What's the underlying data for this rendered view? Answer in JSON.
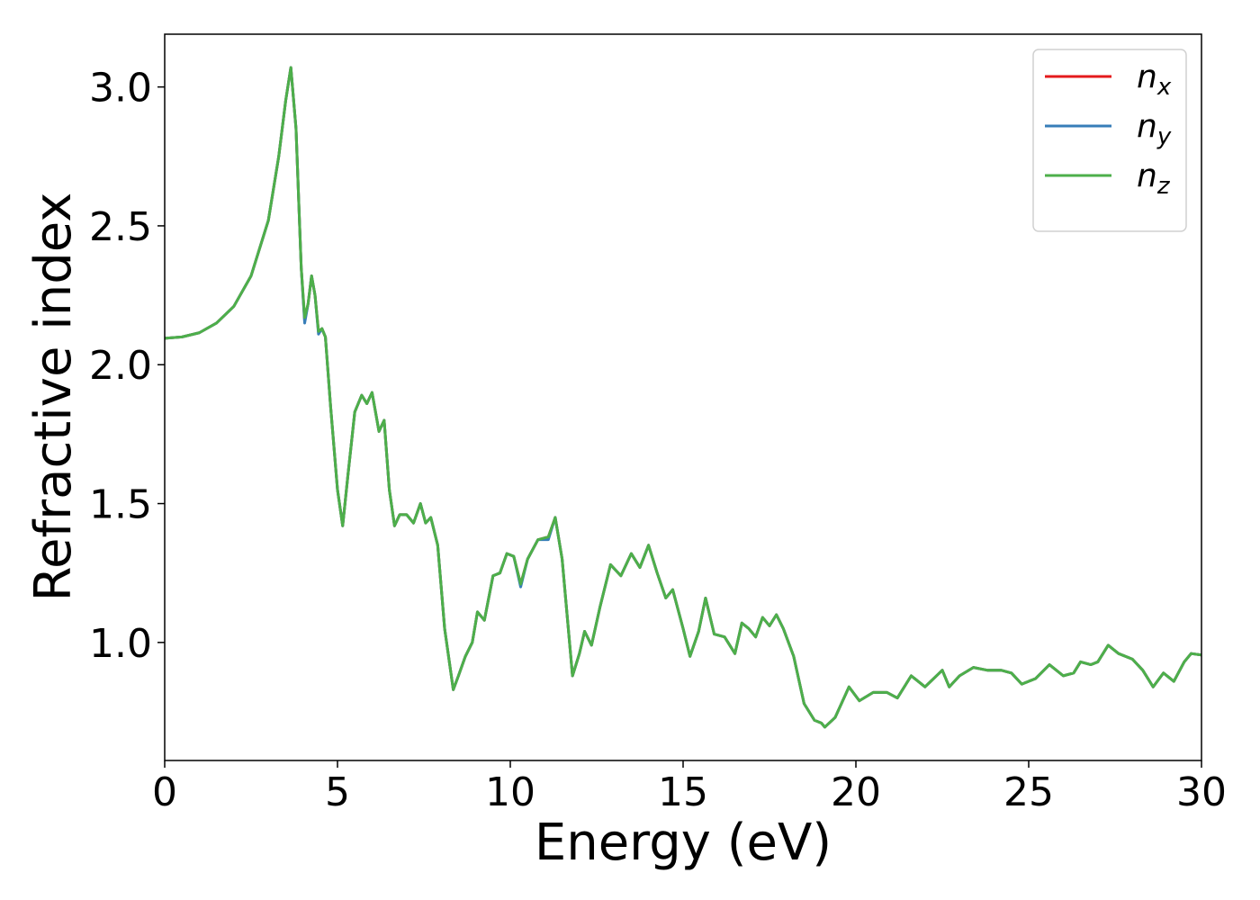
{
  "chart_data": {
    "type": "line",
    "xlabel": "Energy (eV)",
    "ylabel": "Refractive index",
    "x": [
      0,
      0.5,
      1,
      1.5,
      2,
      2.5,
      3,
      3.3,
      3.5,
      3.65,
      3.8,
      3.95,
      4.05,
      4.15,
      4.25,
      4.35,
      4.45,
      4.55,
      4.65,
      4.8,
      5.0,
      5.15,
      5.3,
      5.5,
      5.7,
      5.85,
      6.0,
      6.2,
      6.35,
      6.5,
      6.65,
      6.8,
      7.0,
      7.2,
      7.4,
      7.55,
      7.7,
      7.9,
      8.1,
      8.35,
      8.5,
      8.7,
      8.9,
      9.05,
      9.25,
      9.5,
      9.7,
      9.9,
      10.1,
      10.3,
      10.5,
      10.8,
      11.1,
      11.3,
      11.5,
      11.8,
      12.0,
      12.15,
      12.35,
      12.6,
      12.9,
      13.2,
      13.5,
      13.75,
      14.0,
      14.25,
      14.5,
      14.7,
      15.0,
      15.2,
      15.45,
      15.65,
      15.9,
      16.2,
      16.5,
      16.7,
      16.9,
      17.1,
      17.3,
      17.5,
      17.7,
      17.9,
      18.2,
      18.5,
      18.8,
      19.0,
      19.1,
      19.4,
      19.8,
      20.1,
      20.5,
      20.9,
      21.2,
      21.6,
      22.0,
      22.5,
      22.7,
      23.0,
      23.4,
      23.8,
      24.2,
      24.5,
      24.8,
      25.2,
      25.6,
      26.0,
      26.3,
      26.5,
      26.8,
      27.0,
      27.3,
      27.6,
      28.0,
      28.3,
      28.6,
      28.9,
      29.2,
      29.5,
      29.7,
      30.0
    ],
    "series": [
      {
        "name": "nx",
        "color": "#e41a1c",
        "values": [
          2.095,
          2.1,
          2.115,
          2.15,
          2.21,
          2.32,
          2.52,
          2.75,
          2.95,
          3.07,
          2.85,
          2.35,
          2.16,
          2.22,
          2.32,
          2.25,
          2.12,
          2.13,
          2.1,
          1.85,
          1.55,
          1.42,
          1.6,
          1.83,
          1.89,
          1.86,
          1.9,
          1.76,
          1.8,
          1.55,
          1.42,
          1.46,
          1.46,
          1.43,
          1.5,
          1.43,
          1.45,
          1.35,
          1.05,
          0.83,
          0.88,
          0.95,
          1.0,
          1.11,
          1.08,
          1.24,
          1.25,
          1.32,
          1.31,
          1.21,
          1.3,
          1.37,
          1.38,
          1.45,
          1.3,
          0.88,
          0.96,
          1.04,
          0.99,
          1.13,
          1.28,
          1.24,
          1.32,
          1.27,
          1.35,
          1.25,
          1.16,
          1.19,
          1.05,
          0.95,
          1.04,
          1.16,
          1.03,
          1.02,
          0.96,
          1.07,
          1.05,
          1.02,
          1.09,
          1.06,
          1.1,
          1.05,
          0.95,
          0.78,
          0.72,
          0.71,
          0.695,
          0.73,
          0.84,
          0.79,
          0.82,
          0.82,
          0.8,
          0.88,
          0.84,
          0.9,
          0.84,
          0.88,
          0.91,
          0.9,
          0.9,
          0.89,
          0.85,
          0.87,
          0.92,
          0.88,
          0.89,
          0.93,
          0.92,
          0.93,
          0.99,
          0.96,
          0.94,
          0.9,
          0.84,
          0.89,
          0.86,
          0.93,
          0.96,
          0.955
        ]
      },
      {
        "name": "ny",
        "color": "#377eb8",
        "values": [
          2.095,
          2.1,
          2.115,
          2.15,
          2.21,
          2.32,
          2.52,
          2.75,
          2.95,
          3.07,
          2.85,
          2.35,
          2.15,
          2.22,
          2.32,
          2.25,
          2.11,
          2.13,
          2.1,
          1.85,
          1.55,
          1.42,
          1.6,
          1.83,
          1.89,
          1.86,
          1.9,
          1.76,
          1.8,
          1.55,
          1.42,
          1.46,
          1.46,
          1.43,
          1.5,
          1.43,
          1.45,
          1.35,
          1.05,
          0.83,
          0.88,
          0.95,
          1.0,
          1.11,
          1.08,
          1.24,
          1.25,
          1.32,
          1.31,
          1.2,
          1.3,
          1.37,
          1.37,
          1.45,
          1.3,
          0.88,
          0.96,
          1.04,
          0.99,
          1.13,
          1.28,
          1.24,
          1.32,
          1.27,
          1.35,
          1.25,
          1.16,
          1.19,
          1.05,
          0.95,
          1.04,
          1.16,
          1.03,
          1.02,
          0.96,
          1.07,
          1.05,
          1.02,
          1.09,
          1.06,
          1.1,
          1.05,
          0.95,
          0.78,
          0.72,
          0.71,
          0.695,
          0.73,
          0.84,
          0.79,
          0.82,
          0.82,
          0.8,
          0.88,
          0.84,
          0.9,
          0.84,
          0.88,
          0.91,
          0.9,
          0.9,
          0.89,
          0.85,
          0.87,
          0.92,
          0.88,
          0.89,
          0.93,
          0.92,
          0.93,
          0.99,
          0.96,
          0.94,
          0.9,
          0.84,
          0.89,
          0.86,
          0.93,
          0.96,
          0.955
        ]
      },
      {
        "name": "nz",
        "color": "#4daf4a",
        "values": [
          2.095,
          2.1,
          2.115,
          2.15,
          2.21,
          2.32,
          2.52,
          2.75,
          2.95,
          3.07,
          2.85,
          2.35,
          2.17,
          2.22,
          2.32,
          2.25,
          2.12,
          2.13,
          2.1,
          1.85,
          1.55,
          1.42,
          1.6,
          1.83,
          1.89,
          1.86,
          1.9,
          1.76,
          1.8,
          1.55,
          1.42,
          1.46,
          1.46,
          1.43,
          1.5,
          1.43,
          1.45,
          1.35,
          1.05,
          0.83,
          0.88,
          0.95,
          1.0,
          1.11,
          1.08,
          1.24,
          1.25,
          1.32,
          1.31,
          1.21,
          1.3,
          1.37,
          1.38,
          1.45,
          1.3,
          0.88,
          0.96,
          1.04,
          0.99,
          1.13,
          1.28,
          1.24,
          1.32,
          1.27,
          1.35,
          1.25,
          1.16,
          1.19,
          1.05,
          0.95,
          1.04,
          1.16,
          1.03,
          1.02,
          0.96,
          1.07,
          1.05,
          1.02,
          1.09,
          1.06,
          1.1,
          1.05,
          0.95,
          0.78,
          0.72,
          0.71,
          0.695,
          0.73,
          0.84,
          0.79,
          0.82,
          0.82,
          0.8,
          0.88,
          0.84,
          0.9,
          0.84,
          0.88,
          0.91,
          0.9,
          0.9,
          0.89,
          0.85,
          0.87,
          0.92,
          0.88,
          0.89,
          0.93,
          0.92,
          0.93,
          0.99,
          0.96,
          0.94,
          0.9,
          0.84,
          0.89,
          0.86,
          0.93,
          0.96,
          0.955
        ]
      }
    ],
    "xlim": [
      0,
      30
    ],
    "xticks": [
      0,
      5,
      10,
      15,
      20,
      25,
      30
    ],
    "ylim": [
      0.575,
      3.19
    ],
    "yticks": [
      {
        "value": 1,
        "label": "1.0"
      },
      {
        "value": 1.5,
        "label": "1.5"
      },
      {
        "value": 2,
        "label": "2.0"
      },
      {
        "value": 2.5,
        "label": "2.5"
      },
      {
        "value": 3,
        "label": "3.0"
      }
    ],
    "legend": "upper right",
    "grid": false
  }
}
